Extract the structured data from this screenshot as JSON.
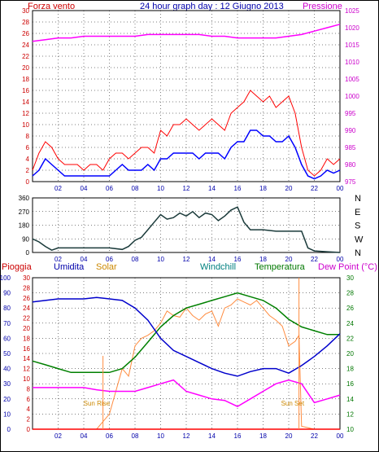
{
  "header": {
    "left_title": "Forza vento",
    "center_title": "24 hour graph day : 12 Giugno 2013",
    "right_title": "Pressione"
  },
  "colors": {
    "frame": "#000000",
    "grid": "#000000",
    "wind_gust": "#ff0000",
    "wind_avg": "#0000ff",
    "pressure": "#ff00ff",
    "direction": "#1a3a3a",
    "humidity": "#0000cc",
    "solar": "#ff8c40",
    "windchill": "#008000",
    "temperature": "#008000",
    "dewpoint": "#ff00ff",
    "rain": "#ff0000",
    "blue_text": "#0000aa",
    "magenta_text": "#cc00cc",
    "red_text": "#cc0000",
    "teal_text": "#008080",
    "orange_text": "#cc8800",
    "green_text": "#007700"
  },
  "chart_data": [
    {
      "type": "line",
      "name": "wind-pressure",
      "xticks": [
        "02",
        "04",
        "06",
        "08",
        "10",
        "12",
        "14",
        "16",
        "18",
        "20",
        "22",
        "00"
      ],
      "xlim": [
        0,
        24
      ],
      "ylim_left": [
        0,
        30
      ],
      "yticks_left": [
        0,
        2,
        4,
        6,
        8,
        10,
        12,
        14,
        16,
        18,
        20,
        22,
        24,
        26,
        28,
        30
      ],
      "ylim_right": [
        975,
        1025
      ],
      "yticks_right": [
        975,
        980,
        985,
        990,
        995,
        1000,
        1005,
        1010,
        1015,
        1020,
        1025
      ],
      "gust": {
        "x": [
          0,
          0.5,
          1,
          1.5,
          2,
          2.5,
          3,
          3.5,
          4,
          4.5,
          5,
          5.5,
          6,
          6.5,
          7,
          7.5,
          8,
          8.5,
          9,
          9.5,
          10,
          10.5,
          11,
          11.5,
          12,
          12.5,
          13,
          13.5,
          14,
          14.5,
          15,
          15.5,
          16,
          16.5,
          17,
          17.5,
          18,
          18.5,
          19,
          19.5,
          20,
          20.5,
          21,
          21.5,
          22,
          22.5,
          23,
          23.5,
          24
        ],
        "y": [
          2,
          5,
          7,
          6,
          4,
          3,
          3,
          3,
          2,
          3,
          3,
          2,
          4,
          5,
          5,
          4,
          5,
          6,
          6,
          5,
          9,
          8,
          10,
          10,
          11,
          10,
          9,
          10,
          11,
          10,
          9,
          12,
          13,
          14,
          16,
          15,
          14,
          15,
          13,
          14,
          15,
          12,
          6,
          2,
          1,
          2,
          4,
          3,
          4
        ]
      },
      "average": {
        "x": [
          0,
          0.5,
          1,
          1.5,
          2,
          2.5,
          3,
          3.5,
          4,
          4.5,
          5,
          5.5,
          6,
          6.5,
          7,
          7.5,
          8,
          8.5,
          9,
          9.5,
          10,
          10.5,
          11,
          11.5,
          12,
          12.5,
          13,
          13.5,
          14,
          14.5,
          15,
          15.5,
          16,
          16.5,
          17,
          17.5,
          18,
          18.5,
          19,
          19.5,
          20,
          20.5,
          21,
          21.5,
          22,
          22.5,
          23,
          23.5,
          24
        ],
        "y": [
          1,
          2,
          4,
          3,
          2,
          1,
          1,
          1,
          1,
          1,
          1,
          1,
          1,
          2,
          3,
          2,
          2,
          2,
          3,
          2,
          4,
          4,
          5,
          5,
          5,
          5,
          4,
          5,
          5,
          5,
          4,
          6,
          7,
          7,
          9,
          9,
          8,
          8,
          7,
          7,
          8,
          6,
          3,
          1,
          0.5,
          1,
          2,
          1.5,
          2
        ]
      },
      "pressure": {
        "x": [
          0,
          1,
          2,
          3,
          4,
          5,
          6,
          7,
          8,
          9,
          10,
          11,
          12,
          13,
          14,
          15,
          16,
          17,
          18,
          19,
          20,
          21,
          22,
          23,
          24
        ],
        "y": [
          1016,
          1016.5,
          1017,
          1017,
          1017.5,
          1017.5,
          1017.5,
          1017.5,
          1017.5,
          1018,
          1018,
          1018,
          1018,
          1018,
          1017.5,
          1017.5,
          1017,
          1017,
          1017,
          1017,
          1017.5,
          1018,
          1019,
          1020,
          1021
        ]
      }
    },
    {
      "type": "line",
      "name": "wind-direction",
      "xticks": [
        "02",
        "04",
        "06",
        "08",
        "10",
        "12",
        "14",
        "16",
        "18",
        "20",
        "22",
        "00"
      ],
      "xlim": [
        0,
        24
      ],
      "ylim": [
        0,
        360
      ],
      "yticks": [
        0,
        90,
        180,
        270,
        360
      ],
      "right_labels": [
        "N",
        "W",
        "S",
        "E",
        "N"
      ],
      "direction": {
        "x": [
          0,
          0.5,
          1,
          1.5,
          2,
          3,
          4,
          5,
          6,
          7,
          7.5,
          8,
          8.5,
          9,
          9.5,
          10,
          10.5,
          11,
          11.5,
          12,
          12.5,
          13,
          13.5,
          14,
          14.5,
          15,
          15.5,
          16,
          16.5,
          17,
          18,
          19,
          20,
          20.5,
          21,
          21.5,
          22,
          23,
          24
        ],
        "y": [
          90,
          70,
          40,
          15,
          30,
          30,
          30,
          30,
          30,
          20,
          40,
          80,
          100,
          150,
          200,
          250,
          220,
          230,
          260,
          240,
          270,
          230,
          260,
          250,
          210,
          240,
          280,
          300,
          200,
          150,
          150,
          140,
          140,
          140,
          140,
          30,
          10,
          5,
          0
        ]
      }
    },
    {
      "type": "line",
      "name": "weather",
      "xticks": [
        "02",
        "04",
        "06",
        "08",
        "10",
        "12",
        "14",
        "16",
        "18",
        "20",
        "22",
        "00"
      ],
      "xlim": [
        0,
        24
      ],
      "legend": [
        "Pioggia",
        "Umidita",
        "Solar",
        "Windchill",
        "Temperatura",
        "Dew Point (°C)"
      ],
      "annotations": [
        "Sun Rise",
        "Sun Set"
      ],
      "sunrise_x": 5.5,
      "sunset_x": 20.8,
      "humidity_axis": {
        "ylim": [
          0,
          100
        ],
        "yticks": [
          0,
          10,
          20,
          30,
          40,
          50,
          60,
          70,
          80,
          90,
          100
        ]
      },
      "rain_axis": {
        "ylim": [
          0,
          30
        ],
        "yticks": [
          0,
          2,
          4,
          6,
          8,
          10,
          12,
          14,
          16,
          18,
          20,
          22,
          24,
          26,
          28,
          30
        ]
      },
      "temp_axis": {
        "ylim": [
          10,
          30
        ],
        "yticks": [
          10,
          12,
          14,
          16,
          18,
          20,
          22,
          24,
          26,
          28,
          30
        ]
      },
      "humidity": {
        "x": [
          0,
          1,
          2,
          3,
          4,
          5,
          6,
          7,
          8,
          9,
          10,
          11,
          12,
          13,
          14,
          15,
          16,
          17,
          18,
          19,
          20,
          21,
          22,
          23,
          24
        ],
        "y": [
          84,
          85,
          86,
          86,
          86,
          87,
          86,
          85,
          80,
          72,
          60,
          52,
          48,
          44,
          40,
          37,
          35,
          38,
          40,
          40,
          37,
          42,
          48,
          55,
          63
        ]
      },
      "temperature": {
        "x": [
          0,
          1,
          2,
          3,
          4,
          5,
          6,
          7,
          8,
          9,
          10,
          11,
          12,
          13,
          14,
          15,
          16,
          17,
          18,
          19,
          20,
          21,
          22,
          23,
          24
        ],
        "y": [
          19,
          18.5,
          18,
          17.5,
          17.5,
          17.5,
          17.5,
          18,
          19.5,
          21.5,
          23.5,
          25,
          26,
          26.5,
          27,
          27.5,
          28,
          27.5,
          27,
          26,
          24.5,
          23.5,
          23,
          22.5,
          22.5
        ]
      },
      "dewpoint": {
        "x": [
          0,
          1,
          2,
          3,
          4,
          5,
          6,
          7,
          8,
          9,
          10,
          11,
          12,
          13,
          14,
          15,
          16,
          17,
          18,
          19,
          20,
          21,
          22,
          23,
          24
        ],
        "y": [
          15.5,
          15.5,
          15.5,
          15.5,
          15.5,
          15.2,
          15,
          15,
          15,
          15.5,
          16,
          16.5,
          15,
          14.5,
          14,
          13.8,
          13,
          14,
          15,
          16,
          16.5,
          16,
          13.5,
          14,
          14.5
        ]
      },
      "solar": {
        "x": [
          0,
          5,
          5.5,
          6,
          6.5,
          7,
          7.5,
          8,
          8.5,
          9,
          9.5,
          10,
          10.5,
          11,
          11.5,
          12,
          12.5,
          13,
          13.5,
          14,
          14.5,
          15,
          15.5,
          16,
          16.5,
          17,
          17.5,
          18,
          18.5,
          19,
          19.5,
          20,
          20.5,
          20.8,
          21,
          22,
          24
        ],
        "y": [
          0,
          0,
          5,
          10,
          25,
          40,
          35,
          55,
          60,
          62,
          65,
          70,
          78,
          75,
          74,
          80,
          75,
          72,
          76,
          78,
          68,
          80,
          82,
          86,
          84,
          82,
          85,
          80,
          75,
          72,
          68,
          55,
          58,
          62,
          2,
          0,
          0
        ]
      },
      "rain": {
        "x": [
          0,
          24
        ],
        "y": [
          0,
          0
        ]
      }
    }
  ]
}
